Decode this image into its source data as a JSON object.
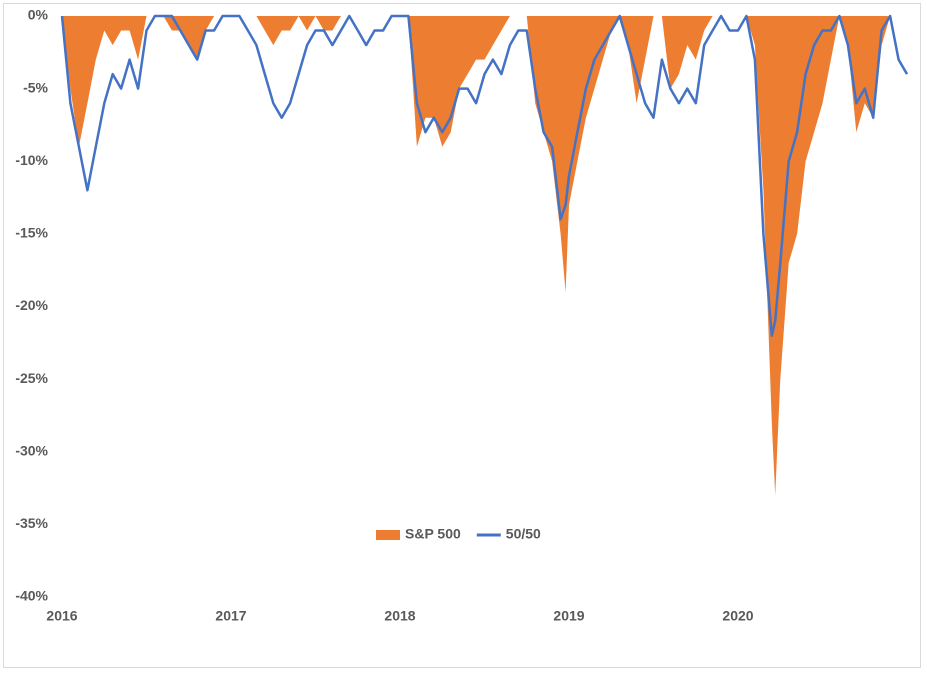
{
  "chart_data": {
    "type": "area-line",
    "x": [
      2016,
      2016.05,
      2016.1,
      2016.15,
      2016.2,
      2016.25,
      2016.3,
      2016.35,
      2016.4,
      2016.45,
      2016.5,
      2016.55,
      2016.6,
      2016.65,
      2016.7,
      2016.75,
      2016.8,
      2016.85,
      2016.9,
      2016.95,
      2017,
      2017.05,
      2017.1,
      2017.15,
      2017.2,
      2017.25,
      2017.3,
      2017.35,
      2017.4,
      2017.45,
      2017.5,
      2017.55,
      2017.6,
      2017.65,
      2017.7,
      2017.75,
      2017.8,
      2017.85,
      2017.9,
      2017.95,
      2018,
      2018.05,
      2018.1,
      2018.15,
      2018.2,
      2018.25,
      2018.3,
      2018.35,
      2018.4,
      2018.45,
      2018.5,
      2018.55,
      2018.6,
      2018.65,
      2018.7,
      2018.75,
      2018.8,
      2018.85,
      2018.9,
      2018.95,
      2018.98,
      2019,
      2019.05,
      2019.1,
      2019.15,
      2019.2,
      2019.25,
      2019.3,
      2019.35,
      2019.4,
      2019.45,
      2019.5,
      2019.55,
      2019.6,
      2019.65,
      2019.7,
      2019.75,
      2019.8,
      2019.85,
      2019.9,
      2019.95,
      2020,
      2020.05,
      2020.1,
      2020.15,
      2020.2,
      2020.22,
      2020.25,
      2020.3,
      2020.35,
      2020.4,
      2020.45,
      2020.5,
      2020.55,
      2020.6,
      2020.65,
      2020.7,
      2020.75,
      2020.8,
      2020.85,
      2020.9,
      2020.95,
      2021
    ],
    "series": [
      {
        "name": "S&P 500",
        "style": "area",
        "color": "#ed7d31",
        "values": [
          0,
          -5,
          -9,
          -6,
          -3,
          -1,
          -2,
          -1,
          -1,
          -3,
          0,
          0,
          0,
          -1,
          -1,
          -2,
          -3,
          -1,
          0,
          0,
          0,
          0,
          0,
          0,
          -1,
          -2,
          -1,
          -1,
          0,
          -1,
          0,
          -1,
          -1,
          0,
          0,
          0,
          0,
          0,
          0,
          0,
          0,
          0,
          -9,
          -7,
          -7,
          -9,
          -8,
          -5,
          -4,
          -3,
          -3,
          -2,
          -1,
          0,
          0,
          0,
          -6,
          -8,
          -10,
          -15,
          -19,
          -13,
          -10,
          -7,
          -5,
          -3,
          -1,
          0,
          -2,
          -6,
          -3,
          0,
          0,
          -5,
          -4,
          -2,
          -3,
          -1,
          0,
          0,
          0,
          0,
          0,
          -2,
          -12,
          -28,
          -33,
          -25,
          -17,
          -15,
          -10,
          -8,
          -6,
          -3,
          0,
          -2,
          -8,
          -6,
          -7,
          -2,
          0,
          0,
          0
        ]
      },
      {
        "name": "50/50",
        "style": "line",
        "color": "#4472c4",
        "values": [
          0,
          -6,
          -9,
          -12,
          -9,
          -6,
          -4,
          -5,
          -3,
          -5,
          -1,
          0,
          0,
          0,
          -1,
          -2,
          -3,
          -1,
          -1,
          0,
          0,
          0,
          -1,
          -2,
          -4,
          -6,
          -7,
          -6,
          -4,
          -2,
          -1,
          -1,
          -2,
          -1,
          0,
          -1,
          -2,
          -1,
          -1,
          0,
          0,
          0,
          -6,
          -8,
          -7,
          -8,
          -7,
          -5,
          -5,
          -6,
          -4,
          -3,
          -4,
          -2,
          -1,
          -1,
          -5,
          -8,
          -9,
          -14,
          -13,
          -11,
          -8,
          -5,
          -3,
          -2,
          -1,
          0,
          -2,
          -4,
          -6,
          -7,
          -3,
          -5,
          -6,
          -5,
          -6,
          -2,
          -1,
          0,
          -1,
          -1,
          0,
          -3,
          -15,
          -22,
          -21,
          -17,
          -10,
          -8,
          -4,
          -2,
          -1,
          -1,
          0,
          -2,
          -6,
          -5,
          -7,
          -1,
          0,
          -3,
          -4
        ]
      }
    ],
    "xlim": [
      2016,
      2021
    ],
    "xticks": [
      2016,
      2017,
      2018,
      2019,
      2020
    ],
    "ylim": [
      -40,
      0
    ],
    "yticks": [
      {
        "value": 0,
        "label": "0%"
      },
      {
        "value": -5,
        "label": "-5%"
      },
      {
        "value": -10,
        "label": "-10%"
      },
      {
        "value": -15,
        "label": "-15%"
      },
      {
        "value": -20,
        "label": "-20%"
      },
      {
        "value": -25,
        "label": "-25%"
      },
      {
        "value": -30,
        "label": "-30%"
      },
      {
        "value": -35,
        "label": "-35%"
      },
      {
        "value": -40,
        "label": "-40%"
      }
    ],
    "legend": "bottom"
  }
}
